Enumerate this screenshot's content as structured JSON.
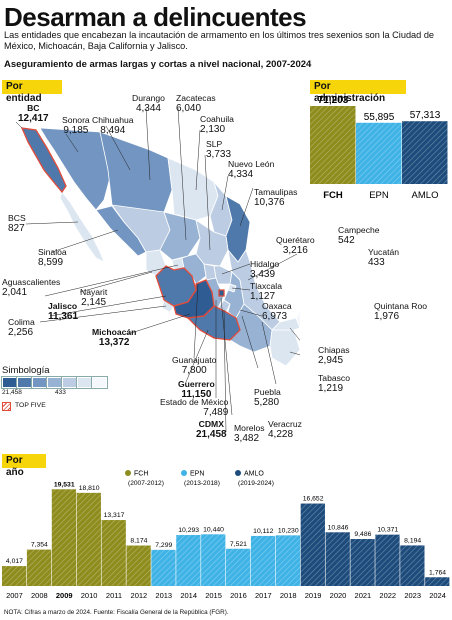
{
  "header": {
    "title": "Desarman a delincuentes",
    "subtitle": "Las entidades que encabezan la incautación de armamento en los últimos tres sexenios son  la  Ciudad de México, Michoacán, Baja California y Jalisco.",
    "chart_heading": "Aseguramiento de armas largas y cortas a nivel nacional, 2007-2024"
  },
  "sections": {
    "by_state": "Por entidad",
    "by_admin": "Por administración",
    "by_year": "Por año"
  },
  "legend": {
    "title": "Simbología",
    "max": "21,458",
    "min": "433",
    "top_five": "TOP FIVE",
    "colors": [
      "#2f5c92",
      "#4f79ab",
      "#7395c1",
      "#97b2d3",
      "#bccde3",
      "#dce6f1",
      "#f4f7fb"
    ]
  },
  "chart_data": [
    {
      "type": "map",
      "title": "Por entidad",
      "entries": [
        {
          "name": "BC",
          "value": "12,417",
          "top_five": true
        },
        {
          "name": "Sonora",
          "value": "9,185"
        },
        {
          "name": "Chihuahua",
          "value": "8,494"
        },
        {
          "name": "Durango",
          "value": "4,344"
        },
        {
          "name": "Zacatecas",
          "value": "6,040"
        },
        {
          "name": "Coahuila",
          "value": "2,130"
        },
        {
          "name": "SLP",
          "value": "3,733"
        },
        {
          "name": "Nuevo León",
          "value": "4,334"
        },
        {
          "name": "Tamaulipas",
          "value": "10,376"
        },
        {
          "name": "BCS",
          "value": "827"
        },
        {
          "name": "Sinaloa",
          "value": "8,599"
        },
        {
          "name": "Querétaro",
          "value": "3,216"
        },
        {
          "name": "Campeche",
          "value": "542"
        },
        {
          "name": "Yucatán",
          "value": "433"
        },
        {
          "name": "Hidalgo",
          "value": "3,439"
        },
        {
          "name": "Aguascalientes",
          "value": "2,041"
        },
        {
          "name": "Nayarit",
          "value": "2,145"
        },
        {
          "name": "Tlaxcala",
          "value": "1,127"
        },
        {
          "name": "Jalisco",
          "value": "11,361",
          "top_five": true
        },
        {
          "name": "Oaxaca",
          "value": "6,973"
        },
        {
          "name": "Quintana Roo",
          "value": "1,976"
        },
        {
          "name": "Colima",
          "value": "2,256"
        },
        {
          "name": "Michoacán",
          "value": "13,372",
          "top_five": true
        },
        {
          "name": "Chiapas",
          "value": "2,945"
        },
        {
          "name": "Guanajuato",
          "value": "7,800"
        },
        {
          "name": "Guerrero",
          "value": "11,150",
          "top_five": true
        },
        {
          "name": "Tabasco",
          "value": "1,219"
        },
        {
          "name": "Estado de México",
          "value": "7,489"
        },
        {
          "name": "Puebla",
          "value": "5,280"
        },
        {
          "name": "CDMX",
          "value": "21,458",
          "top_five": true
        },
        {
          "name": "Morelos",
          "value": "3,482"
        },
        {
          "name": "Veracruz",
          "value": "4,228"
        }
      ]
    },
    {
      "type": "bar",
      "title": "Por administración",
      "categories": [
        "FCH",
        "EPN",
        "AMLO"
      ],
      "values": [
        71203,
        55895,
        57313
      ],
      "labels": [
        "71,203",
        "55,895",
        "57,313"
      ],
      "colors": [
        "#8e8c1c",
        "#3fb3e6",
        "#1d4c7c"
      ]
    },
    {
      "type": "bar",
      "title": "Por año",
      "categories": [
        "2007",
        "2008",
        "2009",
        "2010",
        "2011",
        "2012",
        "2013",
        "2014",
        "2015",
        "2016",
        "2017",
        "2018",
        "2019",
        "2020",
        "2021",
        "2022",
        "2023",
        "2024"
      ],
      "values": [
        4017,
        7354,
        19531,
        18810,
        13317,
        8174,
        7299,
        10293,
        10440,
        7521,
        10112,
        10230,
        16652,
        10846,
        9486,
        10371,
        8194,
        1764
      ],
      "labels": [
        "4,017",
        "7,354",
        "19,531",
        "18,810",
        "13,317",
        "8,174",
        "7,299",
        "10,293",
        "10,440",
        "7,521",
        "10,112",
        "10,230",
        "16,652",
        "10,846",
        "9,486",
        "10,371",
        "8,194",
        "1,764"
      ],
      "series": [
        {
          "name": "FCH",
          "period": "(2007-2012)",
          "color": "#8e8c1c",
          "range": [
            0,
            5
          ]
        },
        {
          "name": "EPN",
          "period": "(2013-2018)",
          "color": "#3fb3e6",
          "range": [
            6,
            11
          ]
        },
        {
          "name": "AMLO",
          "period": "(2019-2024)",
          "color": "#1d4c7c",
          "range": [
            12,
            17
          ]
        }
      ],
      "bold_categories": [
        "2009"
      ],
      "grid": false
    }
  ],
  "footer": {
    "note": "NOTA: Cifras a marzo de 2024. Fuente: Fiscalía General de la República (FGR)."
  }
}
